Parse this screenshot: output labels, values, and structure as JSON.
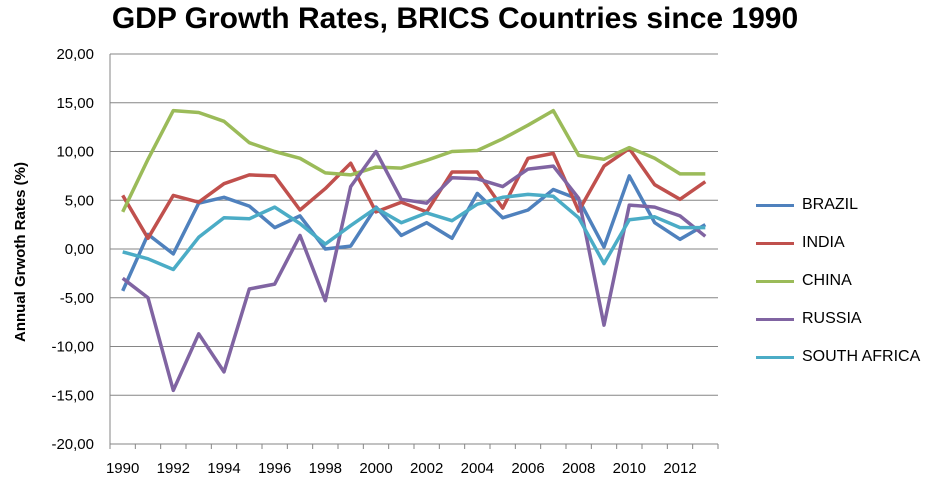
{
  "chart_data": {
    "type": "line",
    "title": "GDP Growth Rates, BRICS Countries since 1990",
    "xlabel": "",
    "ylabel": "Annual Grwoth Rates (%)",
    "ylim": [
      -20,
      20
    ],
    "ytick_step": 5,
    "ytick_labels": [
      "20,00",
      "15,00",
      "10,00",
      "5,00",
      "0,00",
      "-5,00",
      "-10,00",
      "-15,00",
      "-20,00"
    ],
    "xtick_labels": [
      "1990",
      "1992",
      "1994",
      "1996",
      "1998",
      "2000",
      "2002",
      "2004",
      "2006",
      "2008",
      "2010",
      "2012"
    ],
    "grid": true,
    "legend_position": "right",
    "x": [
      1990,
      1991,
      1992,
      1993,
      1994,
      1995,
      1996,
      1997,
      1998,
      1999,
      2000,
      2001,
      2002,
      2003,
      2004,
      2005,
      2006,
      2007,
      2008,
      2009,
      2010,
      2011,
      2012,
      2013
    ],
    "series": [
      {
        "name": "BRAZIL",
        "color": "#4F81BD",
        "values": [
          -4.3,
          1.5,
          -0.5,
          4.7,
          5.3,
          4.4,
          2.2,
          3.4,
          0.0,
          0.3,
          4.3,
          1.4,
          2.7,
          1.1,
          5.7,
          3.2,
          4.0,
          6.1,
          5.1,
          0.2,
          7.5,
          2.7,
          1.0,
          2.5
        ]
      },
      {
        "name": "INDIA",
        "color": "#C0504D",
        "values": [
          5.5,
          1.1,
          5.5,
          4.8,
          6.7,
          7.6,
          7.5,
          4.0,
          6.2,
          8.8,
          3.8,
          4.8,
          3.8,
          7.9,
          7.9,
          4.2,
          9.3,
          9.8,
          3.9,
          8.5,
          10.3,
          6.6,
          5.1,
          6.9
        ]
      },
      {
        "name": "CHINA",
        "color": "#9BBB59",
        "values": [
          3.8,
          9.2,
          14.2,
          14.0,
          13.1,
          10.9,
          10.0,
          9.3,
          7.8,
          7.6,
          8.4,
          8.3,
          9.1,
          10.0,
          10.1,
          11.3,
          12.7,
          14.2,
          9.6,
          9.2,
          10.4,
          9.3,
          7.7,
          7.7
        ]
      },
      {
        "name": "RUSSIA",
        "color": "#8064A2",
        "values": [
          -3.0,
          -5.0,
          -14.5,
          -8.7,
          -12.6,
          -4.1,
          -3.6,
          1.4,
          -5.3,
          6.4,
          10.0,
          5.1,
          4.7,
          7.3,
          7.2,
          6.4,
          8.2,
          8.5,
          5.2,
          -7.8,
          4.5,
          4.3,
          3.4,
          1.3
        ]
      },
      {
        "name": "SOUTH AFRICA",
        "color": "#4BACC6",
        "values": [
          -0.3,
          -1.0,
          -2.1,
          1.2,
          3.2,
          3.1,
          4.3,
          2.6,
          0.5,
          2.4,
          4.2,
          2.7,
          3.7,
          2.9,
          4.6,
          5.3,
          5.6,
          5.4,
          3.2,
          -1.5,
          3.0,
          3.3,
          2.2,
          2.2
        ]
      }
    ]
  }
}
